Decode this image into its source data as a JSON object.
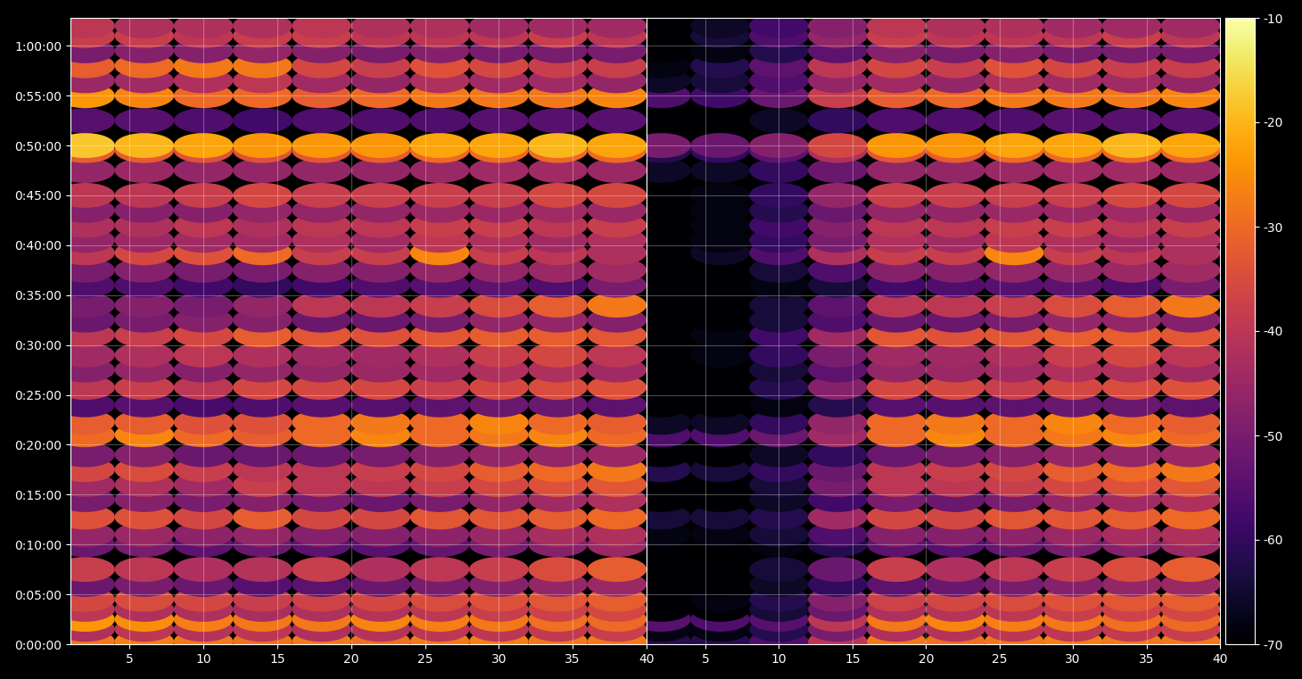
{
  "chart_data": {
    "type": "heatmap",
    "x": [
      2,
      6,
      10,
      14,
      18,
      22,
      26,
      30,
      34,
      38
    ],
    "y": [
      15,
      90,
      150,
      210,
      270,
      360,
      450,
      600,
      660,
      765,
      870,
      960,
      1050,
      1140,
      1260,
      1335,
      1440,
      1545,
      1650,
      1740,
      1860,
      1950,
      2040,
      2160,
      2250,
      2355,
      2430,
      2520,
      2610,
      2700,
      2850,
      2970,
      3000,
      3150,
      3300,
      3390,
      3480,
      3570,
      3660,
      3720
    ],
    "xlim": [
      1,
      40
    ],
    "xticks": [
      5,
      10,
      15,
      20,
      25,
      30,
      35,
      40
    ],
    "ylim": [
      0,
      3768
    ],
    "yticks": [
      {
        "value": 0,
        "label": "0:00:00"
      },
      {
        "value": 300,
        "label": "0:05:00"
      },
      {
        "value": 600,
        "label": "0:10:00"
      },
      {
        "value": 900,
        "label": "0:15:00"
      },
      {
        "value": 1200,
        "label": "0:20:00"
      },
      {
        "value": 1500,
        "label": "0:25:00"
      },
      {
        "value": 1800,
        "label": "0:30:00"
      },
      {
        "value": 2100,
        "label": "0:35:00"
      },
      {
        "value": 2400,
        "label": "0:40:00"
      },
      {
        "value": 2700,
        "label": "0:45:00"
      },
      {
        "value": 3000,
        "label": "0:50:00"
      },
      {
        "value": 3300,
        "label": "0:55:00"
      },
      {
        "value": 3600,
        "label": "1:00:00"
      }
    ],
    "grid": true,
    "colorbar": {
      "range": [
        -70,
        -10
      ],
      "ticks": [
        -70,
        -60,
        -50,
        -40,
        -30,
        -20,
        -10
      ]
    },
    "panels": [
      {
        "cells": [
          [
            -28,
            -27,
            -28,
            -29,
            -28,
            -29,
            -28,
            -27,
            -28,
            -28
          ],
          [
            -42,
            -40,
            -41,
            -40,
            -42,
            -41,
            -40,
            -40,
            -39,
            -38
          ],
          [
            -24,
            -25,
            -27,
            -28,
            -28,
            -26,
            -27,
            -28,
            -29,
            -30
          ],
          [
            -40,
            -42,
            -42,
            -43,
            -42,
            -41,
            -40,
            -38,
            -37,
            -36
          ],
          [
            -36,
            -35,
            -36,
            -38,
            -37,
            -36,
            -35,
            -34,
            -33,
            -32
          ],
          [
            -52,
            -50,
            -52,
            -55,
            -54,
            -52,
            -50,
            -48,
            -46,
            -45
          ],
          [
            -38,
            -40,
            -42,
            -41,
            -38,
            -42,
            -40,
            -38,
            -35,
            -32
          ],
          [
            -52,
            -50,
            -54,
            -52,
            -54,
            -55,
            -53,
            -50,
            -48,
            -45
          ],
          [
            -46,
            -45,
            -47,
            -46,
            -48,
            -48,
            -47,
            -45,
            -43,
            -42
          ],
          [
            -34,
            -34,
            -36,
            -32,
            -36,
            -36,
            -33,
            -33,
            -32,
            -30
          ],
          [
            -50,
            -48,
            -50,
            -48,
            -50,
            -52,
            -50,
            -46,
            -44,
            -42
          ],
          [
            -44,
            -42,
            -44,
            -38,
            -40,
            -40,
            -38,
            -36,
            -34,
            -33
          ],
          [
            -36,
            -35,
            -38,
            -40,
            -40,
            -38,
            -36,
            -32,
            -30,
            -28
          ],
          [
            -50,
            -48,
            -52,
            -52,
            -52,
            -50,
            -48,
            -46,
            -46,
            -45
          ],
          [
            -30,
            -26,
            -30,
            -32,
            -30,
            -26,
            -30,
            -28,
            -26,
            -30
          ],
          [
            -32,
            -32,
            -34,
            -34,
            -30,
            -28,
            -30,
            -26,
            -30,
            -32
          ],
          [
            -56,
            -55,
            -57,
            -56,
            -55,
            -55,
            -54,
            -52,
            -52,
            -54
          ],
          [
            -40,
            -38,
            -40,
            -36,
            -36,
            -36,
            -38,
            -36,
            -35,
            -34
          ],
          [
            -48,
            -46,
            -48,
            -46,
            -46,
            -45,
            -44,
            -42,
            -42,
            -44
          ],
          [
            -44,
            -42,
            -40,
            -42,
            -44,
            -44,
            -42,
            -38,
            -36,
            -40
          ],
          [
            -40,
            -38,
            -36,
            -32,
            -33,
            -34,
            -33,
            -32,
            -32,
            -33
          ],
          [
            -52,
            -50,
            -48,
            -48,
            -52,
            -52,
            -50,
            -46,
            -46,
            -48
          ],
          [
            -50,
            -48,
            -50,
            -46,
            -40,
            -40,
            -38,
            -35,
            -32,
            -28
          ],
          [
            -56,
            -56,
            -58,
            -60,
            -58,
            -56,
            -55,
            -54,
            -56,
            -50
          ],
          [
            -50,
            -48,
            -50,
            -50,
            -48,
            -48,
            -46,
            -46,
            -45,
            -44
          ],
          [
            -40,
            -36,
            -34,
            -30,
            -38,
            -38,
            -26,
            -38,
            -40,
            -42
          ],
          [
            -46,
            -45,
            -44,
            -44,
            -42,
            -44,
            -40,
            -42,
            -44,
            -42
          ],
          [
            -42,
            -42,
            -40,
            -42,
            -40,
            -40,
            -38,
            -38,
            -40,
            -38
          ],
          [
            -48,
            -48,
            -48,
            -46,
            -46,
            -46,
            -45,
            -45,
            -44,
            -45
          ],
          [
            -40,
            -40,
            -38,
            -36,
            -38,
            -38,
            -38,
            -38,
            -36,
            -36
          ],
          [
            -46,
            -45,
            -46,
            -46,
            -46,
            -46,
            -45,
            -44,
            -44,
            -45
          ],
          [
            -32,
            -32,
            -34,
            -34,
            -33,
            -32,
            -30,
            -30,
            -30,
            -30
          ],
          [
            -18,
            -20,
            -22,
            -24,
            -24,
            -24,
            -22,
            -22,
            -20,
            -22
          ],
          [
            -55,
            -55,
            -56,
            -58,
            -56,
            -56,
            -56,
            -55,
            -55,
            -55
          ],
          [
            -24,
            -26,
            -30,
            -30,
            -32,
            -30,
            -28,
            -28,
            -28,
            -26
          ],
          [
            -45,
            -44,
            -42,
            -40,
            -44,
            -46,
            -42,
            -44,
            -44,
            -46
          ],
          [
            -32,
            -30,
            -28,
            -28,
            -36,
            -38,
            -34,
            -36,
            -38,
            -38
          ],
          [
            -50,
            -48,
            -48,
            -46,
            -48,
            -50,
            -48,
            -50,
            -50,
            -50
          ],
          [
            -38,
            -38,
            -40,
            -38,
            -38,
            -40,
            -40,
            -40,
            -38,
            -40
          ],
          [
            -40,
            -42,
            -42,
            -42,
            -40,
            -42,
            -42,
            -44,
            -44,
            -44
          ]
        ]
      },
      {
        "cells": [
          [
            -62,
            -62,
            -56,
            -40,
            -28,
            -29,
            -28,
            -27,
            -28,
            -28
          ],
          [
            -68,
            -68,
            -62,
            -50,
            -42,
            -41,
            -40,
            -40,
            -39,
            -38
          ],
          [
            -55,
            -56,
            -55,
            -40,
            -28,
            -26,
            -27,
            -28,
            -29,
            -30
          ],
          [
            -70,
            -70,
            -64,
            -52,
            -42,
            -41,
            -40,
            -38,
            -37,
            -36
          ],
          [
            -70,
            -68,
            -62,
            -48,
            -37,
            -36,
            -35,
            -34,
            -33,
            -32
          ],
          [
            -70,
            -70,
            -66,
            -60,
            -54,
            -52,
            -50,
            -48,
            -46,
            -45
          ],
          [
            -70,
            -70,
            -64,
            -52,
            -38,
            -42,
            -40,
            -38,
            -35,
            -32
          ],
          [
            -70,
            -70,
            -68,
            -62,
            -54,
            -55,
            -53,
            -50,
            -48,
            -45
          ],
          [
            -68,
            -68,
            -64,
            -56,
            -48,
            -48,
            -47,
            -45,
            -43,
            -42
          ],
          [
            -64,
            -64,
            -62,
            -44,
            -36,
            -36,
            -33,
            -33,
            -32,
            -30
          ],
          [
            -70,
            -70,
            -66,
            -58,
            -50,
            -52,
            -50,
            -46,
            -44,
            -42
          ],
          [
            -70,
            -70,
            -64,
            -50,
            -40,
            -40,
            -38,
            -36,
            -34,
            -33
          ],
          [
            -62,
            -64,
            -60,
            -52,
            -40,
            -38,
            -36,
            -32,
            -30,
            -28
          ],
          [
            -70,
            -70,
            -66,
            -60,
            -52,
            -50,
            -48,
            -46,
            -46,
            -45
          ],
          [
            -56,
            -56,
            -52,
            -44,
            -30,
            -26,
            -30,
            -28,
            -26,
            -30
          ],
          [
            -66,
            -66,
            -60,
            -46,
            -30,
            -28,
            -30,
            -26,
            -30,
            -32
          ],
          [
            -70,
            -70,
            -68,
            -62,
            -55,
            -55,
            -54,
            -52,
            -52,
            -54
          ],
          [
            -70,
            -70,
            -62,
            -48,
            -36,
            -36,
            -38,
            -36,
            -35,
            -34
          ],
          [
            -70,
            -70,
            -64,
            -54,
            -46,
            -45,
            -44,
            -42,
            -42,
            -44
          ],
          [
            -70,
            -68,
            -60,
            -50,
            -44,
            -44,
            -42,
            -38,
            -36,
            -40
          ],
          [
            -70,
            -68,
            -58,
            -44,
            -33,
            -34,
            -33,
            -32,
            -32,
            -33
          ],
          [
            -70,
            -70,
            -64,
            -56,
            -52,
            -52,
            -50,
            -46,
            -46,
            -48
          ],
          [
            -70,
            -70,
            -64,
            -54,
            -40,
            -40,
            -38,
            -35,
            -32,
            -28
          ],
          [
            -70,
            -70,
            -68,
            -64,
            -58,
            -56,
            -55,
            -54,
            -56,
            -50
          ],
          [
            -70,
            -70,
            -64,
            -56,
            -48,
            -48,
            -46,
            -46,
            -45,
            -44
          ],
          [
            -70,
            -66,
            -56,
            -42,
            -38,
            -38,
            -26,
            -38,
            -40,
            -42
          ],
          [
            -70,
            -68,
            -60,
            -50,
            -42,
            -44,
            -40,
            -42,
            -44,
            -42
          ],
          [
            -70,
            -68,
            -58,
            -48,
            -40,
            -40,
            -38,
            -38,
            -40,
            -38
          ],
          [
            -70,
            -68,
            -62,
            -52,
            -46,
            -46,
            -45,
            -45,
            -44,
            -45
          ],
          [
            -70,
            -68,
            -60,
            -46,
            -38,
            -38,
            -38,
            -38,
            -36,
            -36
          ],
          [
            -66,
            -66,
            -60,
            -52,
            -46,
            -46,
            -45,
            -44,
            -44,
            -45
          ],
          [
            -62,
            -60,
            -54,
            -42,
            -33,
            -32,
            -30,
            -30,
            -30,
            -30
          ],
          [
            -50,
            -52,
            -48,
            -36,
            -24,
            -24,
            -22,
            -22,
            -20,
            -22
          ],
          [
            -70,
            -70,
            -66,
            -60,
            -56,
            -56,
            -56,
            -55,
            -55,
            -55
          ],
          [
            -56,
            -58,
            -52,
            -38,
            -32,
            -30,
            -28,
            -28,
            -28,
            -26
          ],
          [
            -66,
            -64,
            -56,
            -46,
            -44,
            -46,
            -42,
            -44,
            -44,
            -46
          ],
          [
            -68,
            -62,
            -54,
            -40,
            -36,
            -38,
            -34,
            -36,
            -38,
            -38
          ],
          [
            -70,
            -68,
            -62,
            -54,
            -48,
            -50,
            -48,
            -50,
            -50,
            -50
          ],
          [
            -70,
            -64,
            -56,
            -46,
            -38,
            -40,
            -40,
            -40,
            -38,
            -40
          ],
          [
            -70,
            -66,
            -58,
            -48,
            -40,
            -42,
            -42,
            -44,
            -44,
            -44
          ]
        ]
      }
    ]
  }
}
